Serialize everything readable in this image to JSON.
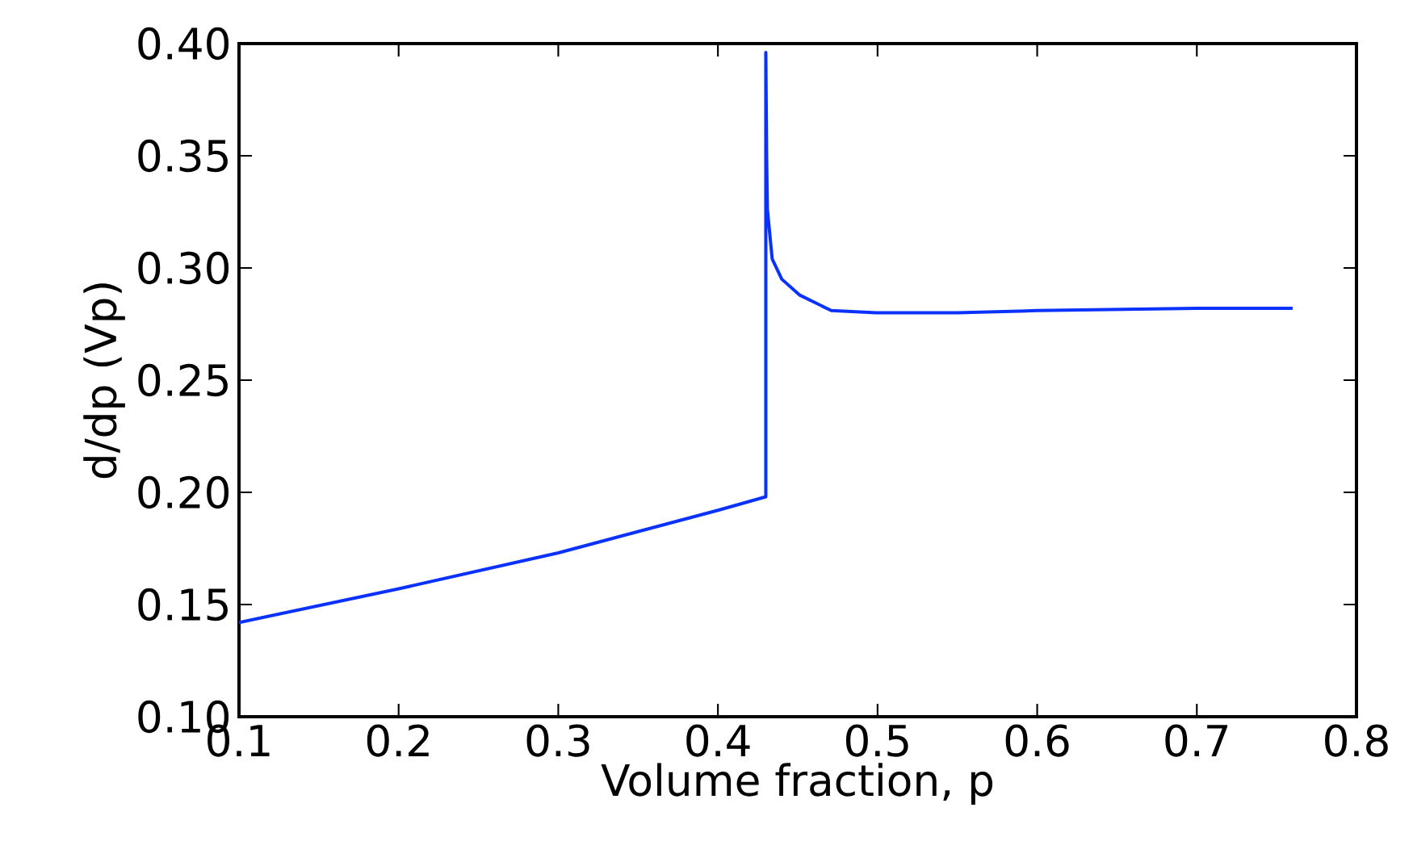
{
  "chart_data": {
    "type": "line",
    "xlabel": "Volume fraction, p",
    "ylabel": "d/dp (Vp)",
    "x": [
      0.1,
      0.2,
      0.3,
      0.4,
      0.43,
      0.43,
      0.4305,
      0.431,
      0.434,
      0.44,
      0.451,
      0.471,
      0.499,
      0.55,
      0.6,
      0.7,
      0.76
    ],
    "series": [
      {
        "color": "#0a32ff",
        "values": [
          0.142,
          0.157,
          0.173,
          0.192,
          0.198,
          0.396,
          0.35,
          0.326,
          0.304,
          0.295,
          0.288,
          0.281,
          0.28,
          0.28,
          0.281,
          0.282,
          0.282
        ]
      }
    ],
    "xlim": [
      0.1,
      0.8
    ],
    "ylim": [
      0.1,
      0.4
    ],
    "xticks": [
      0.1,
      0.2,
      0.3,
      0.4,
      0.5,
      0.6,
      0.7,
      0.8
    ],
    "yticks": [
      {
        "value": 0.1,
        "label": "0.10"
      },
      0.15,
      {
        "value": 0.2,
        "label": "0.20"
      },
      0.25,
      {
        "value": 0.3,
        "label": "0.30"
      },
      0.35,
      {
        "value": 0.4,
        "label": "0.40"
      }
    ],
    "grid": false,
    "marker": "none",
    "line_style": "solid"
  }
}
